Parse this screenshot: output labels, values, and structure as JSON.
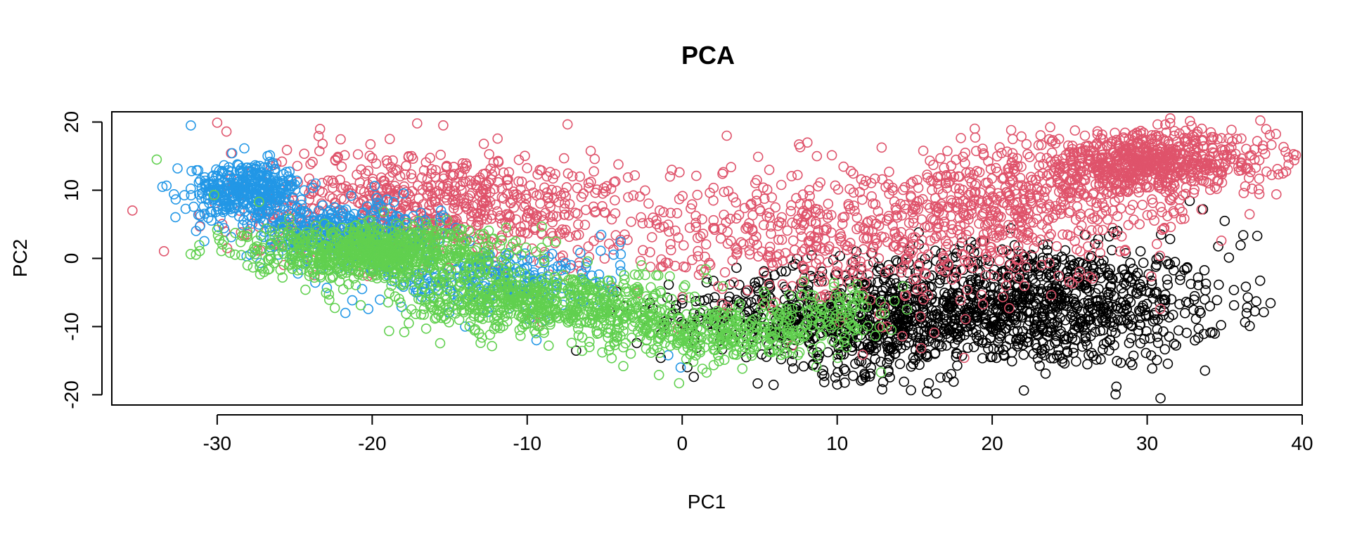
{
  "chart_data": {
    "type": "scatter",
    "title": "PCA",
    "xlabel": "PC1",
    "ylabel": "PC2",
    "xlim": [
      -36.8,
      40
    ],
    "ylim": [
      -21.5,
      21.5
    ],
    "x_ticks": [
      -30,
      -20,
      -10,
      0,
      10,
      20,
      30,
      40
    ],
    "y_ticks": [
      -20,
      -10,
      0,
      10,
      20
    ],
    "grid": false,
    "legend": "none",
    "marker": "open-circle",
    "series": [
      {
        "color": "#000000",
        "clusters": [
          {
            "cx": 22,
            "cy": -7,
            "sx": 6.5,
            "sy": 4.5,
            "n": 1100
          },
          {
            "cx": 12,
            "cy": -10,
            "sx": 3.5,
            "sy": 3.5,
            "n": 350
          },
          {
            "cx": 5,
            "cy": -8,
            "sx": 4,
            "sy": 3,
            "n": 180
          }
        ],
        "points": [
          [
            36.2,
            3.4
          ],
          [
            37.1,
            3.3
          ],
          [
            35.0,
            5.5
          ],
          [
            15.8,
            -19.5
          ],
          [
            12.9,
            -19.2
          ],
          [
            10.0,
            -18.5
          ],
          [
            16.4,
            -19.8
          ],
          [
            33.6,
            7.2
          ],
          [
            30.5,
            -8.0
          ]
        ]
      },
      {
        "color": "#DF536B",
        "clusters": [
          {
            "cx": -16,
            "cy": 8,
            "sx": 6.5,
            "sy": 4,
            "n": 700
          },
          {
            "cx": 30,
            "cy": 14,
            "sx": 4,
            "sy": 2.2,
            "n": 700
          },
          {
            "cx": 10,
            "cy": 3,
            "sx": 8,
            "sy": 5,
            "n": 550
          },
          {
            "cx": 22,
            "cy": 8,
            "sx": 5,
            "sy": 4,
            "n": 400
          }
        ],
        "points": [
          [
            -30.0,
            19.9
          ],
          [
            -29.4,
            18.6
          ],
          [
            -17.1,
            19.8
          ],
          [
            37.1,
            17.2
          ],
          [
            37.0,
            13.3
          ],
          [
            -12.8,
            16.8
          ],
          [
            -25.5,
            15.9
          ],
          [
            -23.2,
            16.8
          ],
          [
            17.4,
            -3.1
          ],
          [
            14.2,
            -11.4
          ],
          [
            2.6,
            12.4
          ],
          [
            4.9,
            14.9
          ]
        ]
      },
      {
        "color": "#2297E6",
        "clusters": [
          {
            "cx": -28,
            "cy": 10,
            "sx": 1.8,
            "sy": 2,
            "n": 400
          },
          {
            "cx": -22,
            "cy": 4,
            "sx": 3,
            "sy": 2,
            "n": 350
          },
          {
            "cx": -12,
            "cy": -3,
            "sx": 4,
            "sy": 2.5,
            "n": 250
          }
        ],
        "points": [
          [
            -31.7,
            19.5
          ],
          [
            -31.1,
            4.8
          ],
          [
            -0.9,
            -14.2
          ],
          [
            -0.1,
            -16.0
          ],
          [
            -9.4,
            -12.0
          ],
          [
            -14.0,
            -10.0
          ],
          [
            -4.0,
            -1.0
          ]
        ]
      },
      {
        "color": "#61D04F",
        "clusters": [
          {
            "cx": -20,
            "cy": 1,
            "sx": 4,
            "sy": 2,
            "n": 800
          },
          {
            "cx": -9,
            "cy": -6.5,
            "sx": 4.5,
            "sy": 2.3,
            "n": 600
          },
          {
            "cx": 2,
            "cy": -11,
            "sx": 4,
            "sy": 2,
            "n": 350
          },
          {
            "cx": 10,
            "cy": -8,
            "sx": 1.5,
            "sy": 2,
            "n": 80
          }
        ],
        "points": [
          [
            -33.9,
            14.5
          ],
          [
            -30.2,
            9.3
          ],
          [
            -27.3,
            8.3
          ],
          [
            -30.0,
            4.2
          ],
          [
            -0.2,
            -18.3
          ],
          [
            -1.5,
            -17.1
          ],
          [
            -3.8,
            -15.8
          ],
          [
            14.5,
            -7.5
          ],
          [
            13.5,
            -10.5
          ],
          [
            -10.0,
            -8.0
          ]
        ]
      }
    ]
  }
}
